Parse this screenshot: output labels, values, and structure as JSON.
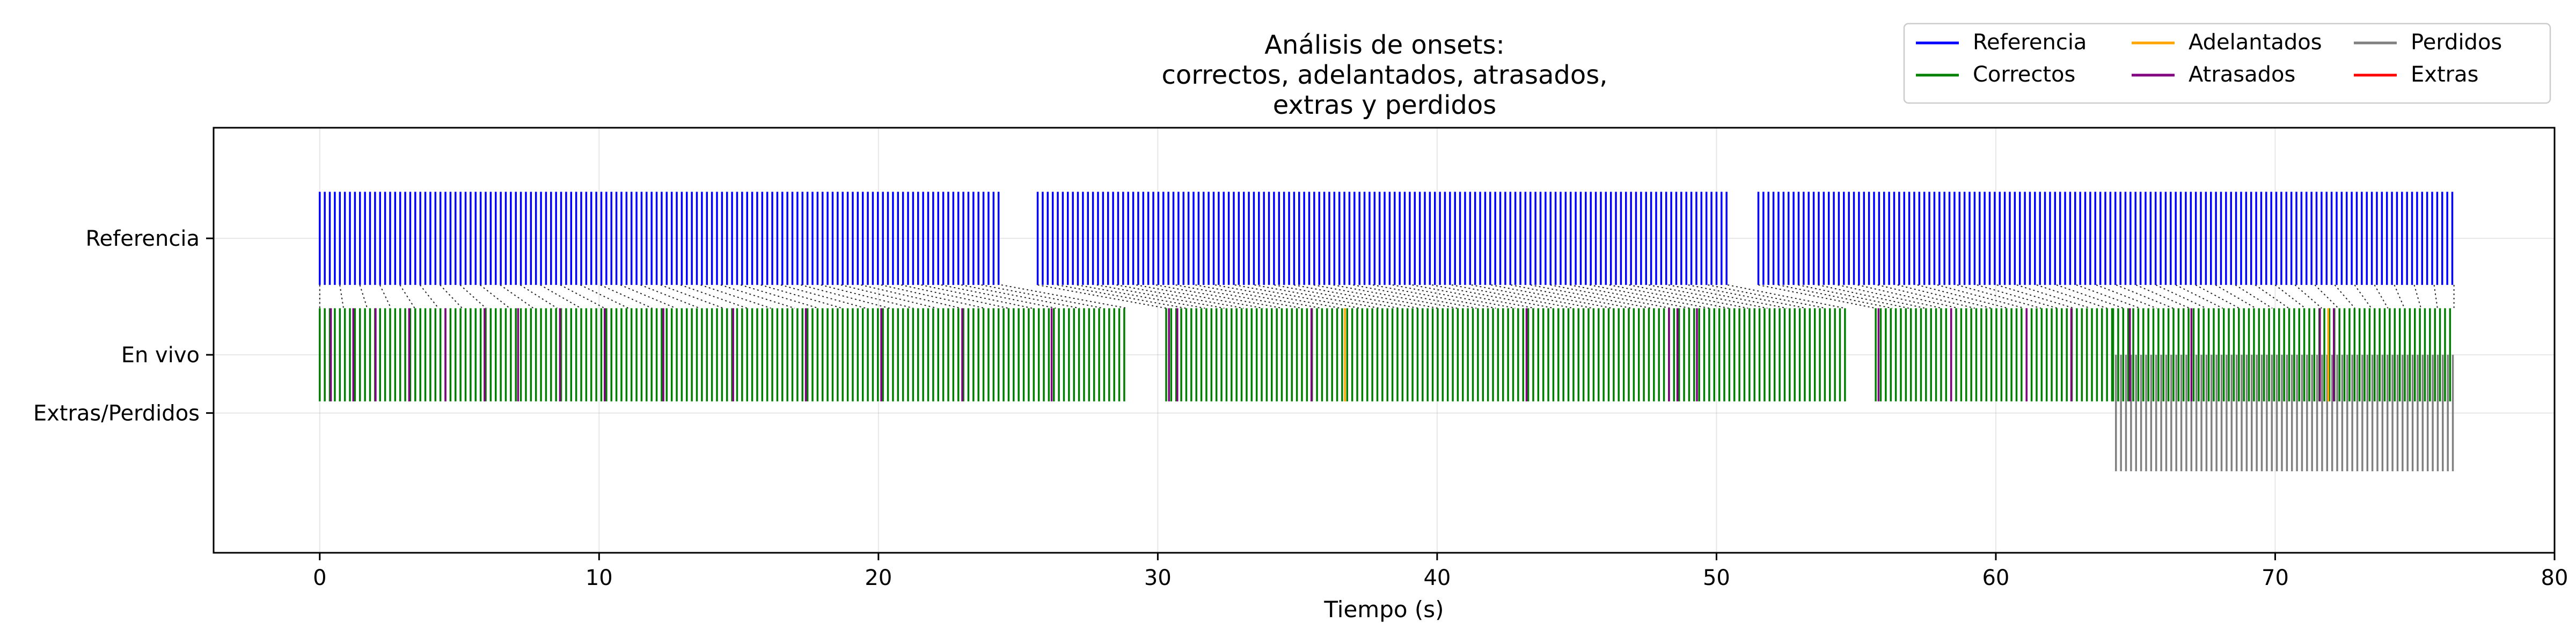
{
  "chart_data": {
    "type": "event-raster",
    "title_lines": [
      "Análisis de onsets:",
      "correctos, adelantados, atrasados,",
      "extras y perdidos"
    ],
    "xlabel": "Tiempo (s)",
    "ylabel": "",
    "xlim": [
      -3.8,
      80
    ],
    "xticks": [
      0,
      10,
      20,
      30,
      40,
      50,
      60,
      70,
      80
    ],
    "xtick_labels": [
      "0",
      "10",
      "20",
      "30",
      "40",
      "50",
      "60",
      "70",
      "80"
    ],
    "rows": [
      {
        "label": "Referencia",
        "value": 1.0
      },
      {
        "label": "En vivo",
        "value": 0.0
      },
      {
        "label": "Extras/Perdidos",
        "value": -0.5
      }
    ],
    "ylim": [
      -1.7,
      1.95
    ],
    "grid": true,
    "legend": {
      "placement": "top-right",
      "columns": 3,
      "items": [
        {
          "label": "Referencia",
          "color": "#0000ff"
        },
        {
          "label": "Correctos",
          "color": "#008000"
        },
        {
          "label": "Adelantados",
          "color": "#ffa500"
        },
        {
          "label": "Atrasados",
          "color": "#800080"
        },
        {
          "label": "Perdidos",
          "color": "#808080"
        },
        {
          "label": "Extras",
          "color": "#ff0000"
        }
      ]
    },
    "series": {
      "referencia": {
        "color": "#0000ff",
        "y_range": [
          0.6,
          1.4
        ],
        "segments": [
          [
            0.0,
            24.4
          ],
          [
            25.7,
            50.4
          ],
          [
            51.5,
            76.4
          ]
        ],
        "spacing": 0.18
      },
      "correctos": {
        "color": "#008000",
        "y_range": [
          -0.4,
          0.4
        ],
        "segments": [
          [
            0.0,
            28.9
          ],
          [
            30.3,
            54.6
          ],
          [
            55.7,
            64.2
          ],
          [
            64.2,
            76.4
          ]
        ],
        "spacing": 0.18
      },
      "atrasados": {
        "color": "#800080",
        "y_range": [
          -0.4,
          0.4
        ],
        "times": [
          0.4,
          1.2,
          2.0,
          3.2,
          4.5,
          5.9,
          7.1,
          8.6,
          10.2,
          12.3,
          14.8,
          17.4,
          20.1,
          23.0,
          26.2,
          30.4,
          30.7,
          35.5,
          43.2,
          48.3,
          48.6,
          49.3,
          55.8,
          58.4,
          61.1,
          62.7,
          64.8,
          67.0,
          71.6,
          72.1
        ],
        "spacing": null
      },
      "adelantados": {
        "color": "#ffa500",
        "y_range": [
          -0.4,
          0.4
        ],
        "times": [
          36.7,
          71.9
        ],
        "spacing": null
      },
      "perdidos": {
        "color": "#808080",
        "y_range": [
          -1.0,
          0.0
        ],
        "segments": [
          [
            64.3,
            76.4
          ]
        ],
        "spacing": 0.18
      },
      "extras": {
        "color": "#ff0000",
        "y_range": [
          -1.0,
          0.0
        ],
        "times": [],
        "spacing": null
      }
    },
    "alignment_lines": {
      "color": "#000000",
      "style": "dotted",
      "from_row": "Referencia",
      "to_row": "En vivo",
      "segment_pairs": [
        {
          "ref": [
            0.0,
            24.4
          ],
          "live": [
            0.0,
            28.9
          ]
        },
        {
          "ref": [
            25.7,
            50.4
          ],
          "live": [
            30.3,
            54.6
          ]
        },
        {
          "ref": [
            51.5,
            76.4
          ],
          "live": [
            55.7,
            76.4
          ]
        }
      ],
      "spacing": 0.7
    }
  }
}
